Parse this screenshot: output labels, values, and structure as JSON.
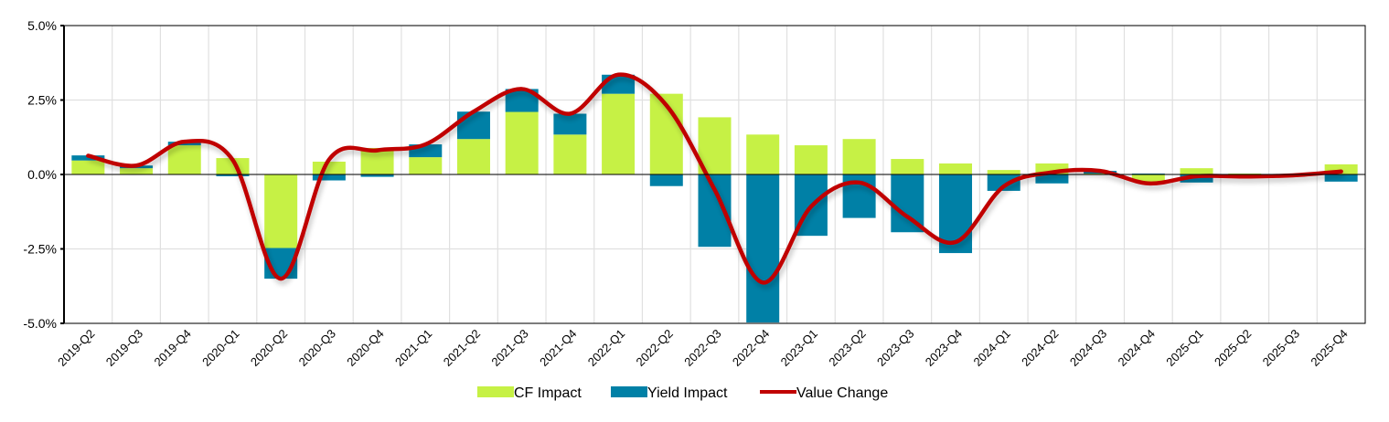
{
  "chart_data": {
    "type": "bar",
    "stacked": true,
    "title": "",
    "xlabel": "",
    "ylabel": "",
    "ylim": [
      -5.0,
      5.0
    ],
    "yticks": [
      "5.0%",
      "2.5%",
      "0.0%",
      "-2.5%",
      "-5.0%"
    ],
    "ytick_values": [
      5.0,
      2.5,
      0.0,
      -2.5,
      -5.0
    ],
    "grid": true,
    "legend": "bottom",
    "categories": [
      "2019-Q2",
      "2019-Q3",
      "2019-Q4",
      "2020-Q1",
      "2020-Q2",
      "2020-Q3",
      "2020-Q4",
      "2021-Q1",
      "2021-Q2",
      "2021-Q3",
      "2021-Q4",
      "2022-Q1",
      "2022-Q2",
      "2022-Q3",
      "2022-Q4",
      "2023-Q1",
      "2023-Q2",
      "2023-Q3",
      "2023-Q4",
      "2024-Q1",
      "2024-Q2",
      "2024-Q3",
      "2024-Q4",
      "2025-Q1",
      "2025-Q2",
      "2025-Q3",
      "2025-Q4"
    ],
    "series": [
      {
        "name": "CF Impact",
        "type": "bar",
        "color": "#c6f145",
        "values": [
          0.47,
          0.21,
          0.98,
          0.55,
          -2.47,
          0.43,
          0.89,
          0.58,
          1.19,
          2.1,
          1.34,
          2.71,
          2.71,
          1.92,
          1.34,
          0.98,
          1.19,
          0.52,
          0.37,
          0.15,
          0.37,
          0.03,
          -0.24,
          0.21,
          0.03,
          0.01,
          0.34
        ]
      },
      {
        "name": "Yield Impact",
        "type": "bar",
        "color": "#0080a6",
        "values": [
          0.17,
          0.09,
          0.12,
          -0.06,
          -1.03,
          -0.2,
          -0.08,
          0.43,
          0.92,
          0.77,
          0.7,
          0.64,
          -0.39,
          -2.43,
          -4.97,
          -2.06,
          -1.46,
          -1.94,
          -2.64,
          -0.55,
          -0.3,
          0.09,
          0.03,
          -0.27,
          -0.1,
          -0.04,
          -0.24
        ]
      },
      {
        "name": "Value Change",
        "type": "line",
        "color": "#c00000",
        "values": [
          0.63,
          0.3,
          1.1,
          0.49,
          -3.5,
          0.5,
          0.81,
          1.01,
          2.11,
          2.87,
          2.04,
          3.35,
          2.32,
          -0.51,
          -3.63,
          -1.08,
          -0.27,
          -1.42,
          -2.27,
          -0.4,
          0.07,
          0.12,
          -0.3,
          -0.06,
          -0.07,
          -0.03,
          0.1
        ]
      }
    ]
  }
}
